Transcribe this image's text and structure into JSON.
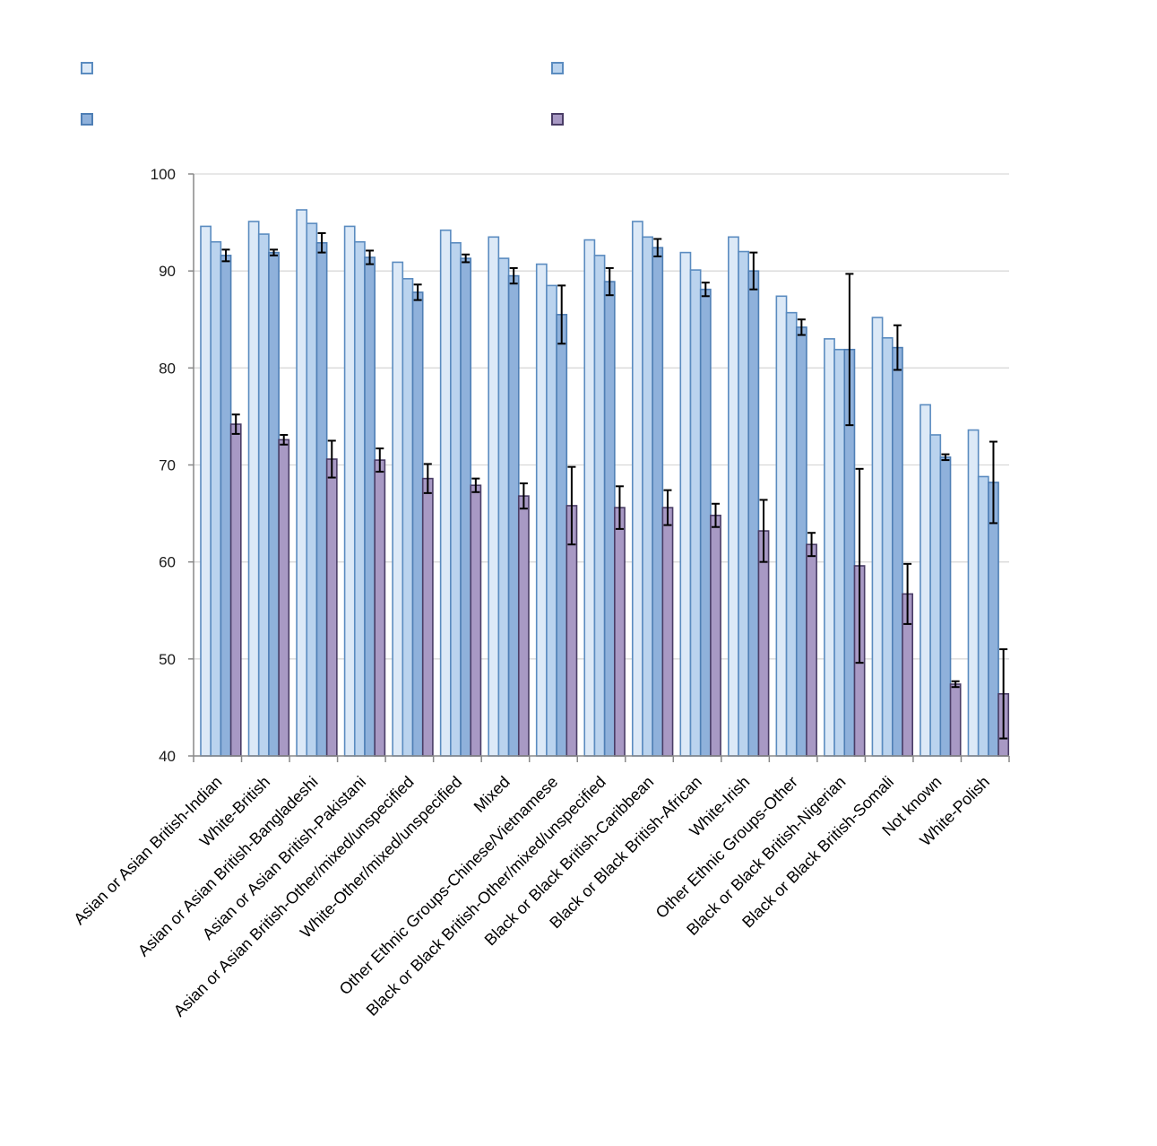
{
  "chart_data": {
    "type": "bar",
    "ylim": [
      40,
      100
    ],
    "yticks": [
      40,
      50,
      60,
      70,
      80,
      90,
      100
    ],
    "grid": true,
    "legend": "top",
    "categories": [
      "Asian or Asian British-Indian",
      "White-British",
      "Asian or Asian British-Bangladeshi",
      "Asian or Asian British-Pakistani",
      "Asian or Asian British-Other/mixed/unspecified",
      "White-Other/mixed/unspecified",
      "Mixed",
      "Other Ethnic Groups-Chinese/Vietnamese",
      "Black or Black British-Other/mixed/unspecified",
      "Black or Black British-Caribbean",
      "Black or Black British-African",
      "White-Irish",
      "Other Ethnic Groups-Other",
      "Black or Black British-Nigerian",
      "Black or Black British-Somali",
      "Not known",
      "White-Polish"
    ],
    "series": [
      {
        "color": "#dce9f7",
        "border": "#5b8cc0",
        "values": [
          94.6,
          95.1,
          96.3,
          94.6,
          90.9,
          94.2,
          93.5,
          90.7,
          93.2,
          95.1,
          91.9,
          93.5,
          87.4,
          83.0,
          85.2,
          76.2,
          73.6
        ]
      },
      {
        "color": "#bad3ee",
        "border": "#5b8cc0",
        "values": [
          93.0,
          93.8,
          94.9,
          93.0,
          89.2,
          92.9,
          91.3,
          88.5,
          91.6,
          93.5,
          90.1,
          92.0,
          85.7,
          81.9,
          83.1,
          73.1,
          68.8
        ]
      },
      {
        "color": "#8fb1db",
        "border": "#4f7fb5",
        "values": [
          91.6,
          91.9,
          92.9,
          91.4,
          87.8,
          91.3,
          89.5,
          85.5,
          88.9,
          92.4,
          88.1,
          90.0,
          84.2,
          81.9,
          82.1,
          70.8,
          68.2
        ],
        "error": [
          0.6,
          0.3,
          1.0,
          0.7,
          0.8,
          0.4,
          0.8,
          3.0,
          1.4,
          0.9,
          0.7,
          1.9,
          0.8,
          7.8,
          2.3,
          0.3,
          4.2
        ]
      },
      {
        "color": "#a899c4",
        "border": "#4a3d66",
        "values": [
          74.2,
          72.6,
          70.6,
          70.5,
          68.6,
          67.9,
          66.8,
          65.8,
          65.6,
          65.6,
          64.8,
          63.2,
          61.8,
          59.6,
          56.7,
          47.4,
          46.4
        ],
        "error": [
          1.0,
          0.5,
          1.9,
          1.2,
          1.5,
          0.7,
          1.3,
          4.0,
          2.2,
          1.8,
          1.2,
          3.2,
          1.2,
          10.0,
          3.1,
          0.3,
          4.6
        ]
      }
    ]
  }
}
